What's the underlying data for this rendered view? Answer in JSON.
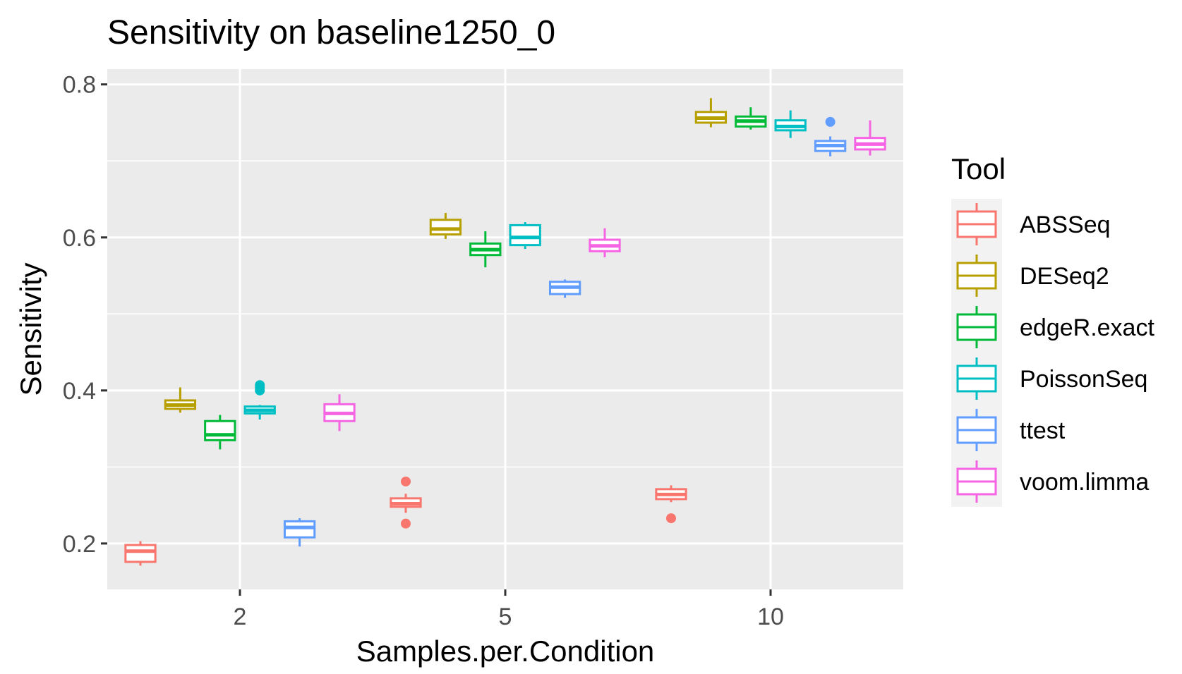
{
  "chart_data": {
    "type": "boxplot",
    "title": "Sensitivity on baseline1250_0",
    "xlabel": "Samples.per.Condition",
    "ylabel": "Sensitivity",
    "categories": [
      "2",
      "5",
      "10"
    ],
    "ylim": [
      0.14,
      0.82
    ],
    "yticks": [
      0.2,
      0.4,
      0.6,
      0.8
    ],
    "ytick_labels": [
      "0.2",
      "0.4",
      "0.6",
      "0.8"
    ],
    "grid": true,
    "legend_position": "right",
    "legend_title": "Tool",
    "series": [
      {
        "name": "ABSSeq",
        "color": "#F8766D",
        "boxes": [
          {
            "category": "2",
            "min": 0.171,
            "q1": 0.176,
            "median": 0.19,
            "q3": 0.198,
            "max": 0.203,
            "outliers": []
          },
          {
            "category": "5",
            "min": 0.24,
            "q1": 0.248,
            "median": 0.252,
            "q3": 0.259,
            "max": 0.265,
            "outliers": [
              0.281,
              0.226
            ]
          },
          {
            "category": "10",
            "min": 0.254,
            "q1": 0.258,
            "median": 0.264,
            "q3": 0.271,
            "max": 0.276,
            "outliers": [
              0.233
            ]
          }
        ]
      },
      {
        "name": "DESeq2",
        "color": "#B79F00",
        "boxes": [
          {
            "category": "2",
            "min": 0.371,
            "q1": 0.376,
            "median": 0.381,
            "q3": 0.387,
            "max": 0.404,
            "outliers": []
          },
          {
            "category": "5",
            "min": 0.598,
            "q1": 0.604,
            "median": 0.611,
            "q3": 0.623,
            "max": 0.632,
            "outliers": []
          },
          {
            "category": "10",
            "min": 0.744,
            "q1": 0.75,
            "median": 0.756,
            "q3": 0.764,
            "max": 0.782,
            "outliers": []
          }
        ]
      },
      {
        "name": "edgeR.exact",
        "color": "#00BA38",
        "boxes": [
          {
            "category": "2",
            "min": 0.323,
            "q1": 0.335,
            "median": 0.342,
            "q3": 0.36,
            "max": 0.368,
            "outliers": []
          },
          {
            "category": "5",
            "min": 0.561,
            "q1": 0.577,
            "median": 0.584,
            "q3": 0.592,
            "max": 0.608,
            "outliers": []
          },
          {
            "category": "10",
            "min": 0.741,
            "q1": 0.745,
            "median": 0.752,
            "q3": 0.758,
            "max": 0.77,
            "outliers": []
          }
        ]
      },
      {
        "name": "PoissonSeq",
        "color": "#00BFC4",
        "boxes": [
          {
            "category": "2",
            "min": 0.362,
            "q1": 0.37,
            "median": 0.374,
            "q3": 0.379,
            "max": 0.381,
            "outliers": [
              0.4,
              0.404,
              0.407
            ]
          },
          {
            "category": "5",
            "min": 0.585,
            "q1": 0.59,
            "median": 0.6,
            "q3": 0.616,
            "max": 0.62,
            "outliers": []
          },
          {
            "category": "10",
            "min": 0.73,
            "q1": 0.74,
            "median": 0.745,
            "q3": 0.753,
            "max": 0.766,
            "outliers": []
          }
        ]
      },
      {
        "name": "ttest",
        "color": "#619CFF",
        "boxes": [
          {
            "category": "2",
            "min": 0.196,
            "q1": 0.208,
            "median": 0.221,
            "q3": 0.229,
            "max": 0.233,
            "outliers": []
          },
          {
            "category": "5",
            "min": 0.521,
            "q1": 0.526,
            "median": 0.535,
            "q3": 0.542,
            "max": 0.545,
            "outliers": []
          },
          {
            "category": "10",
            "min": 0.706,
            "q1": 0.713,
            "median": 0.72,
            "q3": 0.726,
            "max": 0.732,
            "outliers": [
              0.751
            ]
          }
        ]
      },
      {
        "name": "voom.limma",
        "color": "#F564E3",
        "boxes": [
          {
            "category": "2",
            "min": 0.347,
            "q1": 0.36,
            "median": 0.37,
            "q3": 0.382,
            "max": 0.395,
            "outliers": []
          },
          {
            "category": "5",
            "min": 0.574,
            "q1": 0.582,
            "median": 0.589,
            "q3": 0.597,
            "max": 0.612,
            "outliers": []
          },
          {
            "category": "10",
            "min": 0.707,
            "q1": 0.715,
            "median": 0.722,
            "q3": 0.73,
            "max": 0.753,
            "outliers": []
          }
        ]
      }
    ]
  }
}
